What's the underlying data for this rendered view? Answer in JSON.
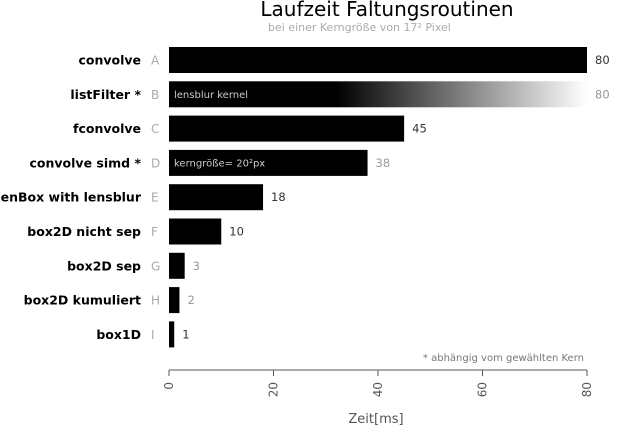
{
  "chart_data": {
    "type": "bar",
    "orientation": "horizontal",
    "title": "Laufzeit Faltungsroutinen",
    "subtitle": "bei einer Kerngröße von 17² Pixel",
    "xlabel": "Zeit[ms]",
    "xlim": [
      0,
      85
    ],
    "xticks": [
      0,
      20,
      40,
      60,
      80
    ],
    "xtick_labels": [
      "0",
      "20",
      "40",
      "60",
      "80"
    ],
    "note": "* abhängig vom gewählten Kern",
    "categories": [
      "convolve",
      "listFilter *",
      "fconvolve",
      "convolve simd *",
      "genBox with lensblur",
      "box2D nicht sep",
      "box2D sep",
      "box2D kumuliert",
      "box1D"
    ],
    "letters": [
      "A",
      "B",
      "C",
      "D",
      "E",
      "F",
      "G",
      "H",
      "I"
    ],
    "values": [
      80,
      80,
      45,
      38,
      18,
      10,
      3,
      2,
      1
    ],
    "value_labels": [
      "80",
      "80",
      "45",
      "38",
      "18",
      "10",
      "3",
      "2",
      "1"
    ],
    "bar_annotations": [
      "",
      "lensblur kernel",
      "",
      "kerngröße= 20²px",
      "",
      "",
      "",
      "",
      ""
    ],
    "gradient_bars": [
      false,
      true,
      false,
      false,
      false,
      false,
      false,
      false,
      false
    ],
    "highlighted": [
      false,
      true,
      false,
      true,
      false,
      false,
      true,
      true,
      false
    ],
    "colors": {
      "bar": "#000000",
      "value_normal": "#333333",
      "value_highlight": "#999999"
    }
  }
}
